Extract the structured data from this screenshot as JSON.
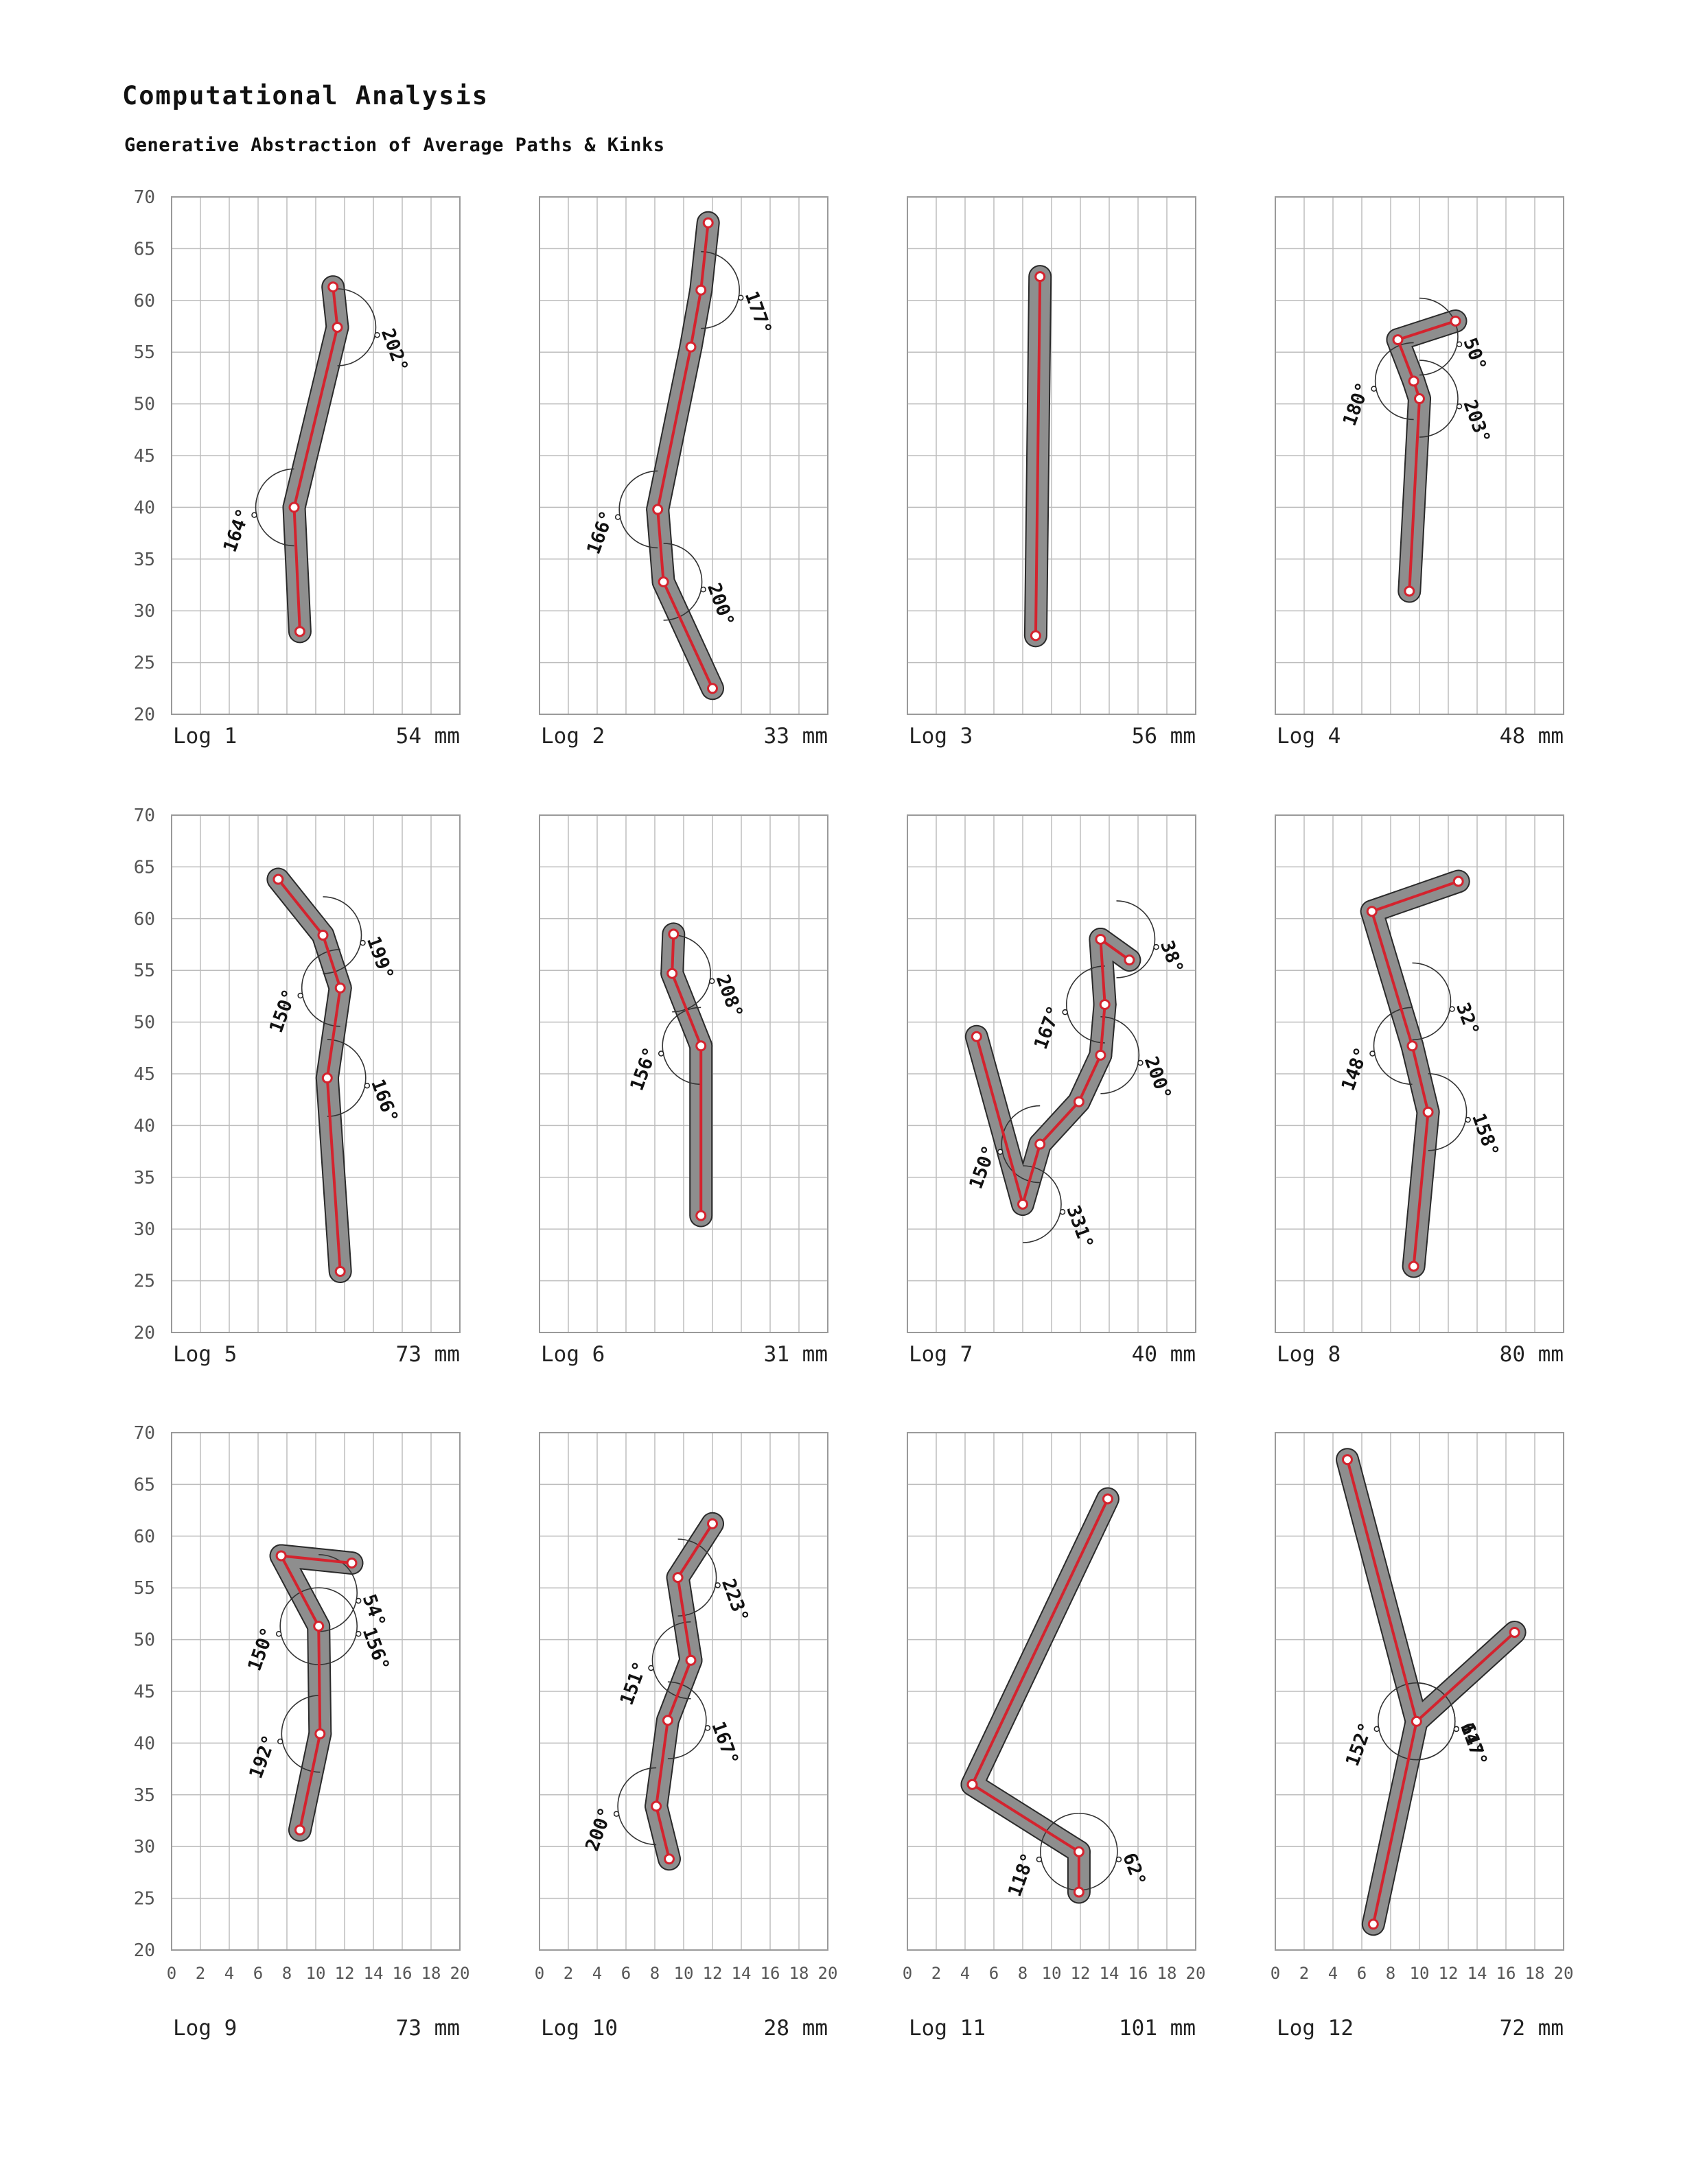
{
  "header": {
    "title": "Computational Analysis",
    "subtitle": "Generative Abstraction of Average Paths & Kinks"
  },
  "colors": {
    "path": "#d4232e",
    "log_fill": "#8e8e8e",
    "log_stroke": "#2a2a2a",
    "grid": "#bdbdbd",
    "text": "#111111"
  },
  "axes": {
    "y_ticks": [
      20,
      25,
      30,
      35,
      40,
      45,
      50,
      55,
      60,
      65,
      70
    ],
    "x_ticks": [
      0,
      2,
      4,
      6,
      8,
      10,
      12,
      14,
      16,
      18,
      20
    ],
    "xlim": [
      0,
      20
    ],
    "ylim": [
      20,
      70
    ]
  },
  "chart_data": [
    {
      "type": "scatter",
      "label": "Log 1",
      "length": "54 mm",
      "points": [
        [
          11.2,
          61.3
        ],
        [
          11.5,
          57.4
        ],
        [
          8.5,
          40.0
        ],
        [
          8.9,
          28.0
        ]
      ],
      "angles": [
        {
          "value": "202°",
          "at": [
            11.5,
            57.4
          ]
        },
        {
          "value": "164°",
          "at": [
            8.5,
            40.0
          ]
        }
      ]
    },
    {
      "type": "scatter",
      "label": "Log 2",
      "length": "33 mm",
      "points": [
        [
          11.7,
          67.5
        ],
        [
          11.2,
          61.0
        ],
        [
          10.5,
          55.5
        ],
        [
          8.2,
          39.8
        ],
        [
          8.6,
          32.8
        ],
        [
          12.0,
          22.5
        ]
      ],
      "angles": [
        {
          "value": "177°",
          "at": [
            11.2,
            61.0
          ]
        },
        {
          "value": "166°",
          "at": [
            8.2,
            39.8
          ]
        },
        {
          "value": "200°",
          "at": [
            8.6,
            32.8
          ]
        }
      ]
    },
    {
      "type": "scatter",
      "label": "Log 3",
      "length": "56 mm",
      "points": [
        [
          9.2,
          62.3
        ],
        [
          8.9,
          27.6
        ]
      ],
      "angles": []
    },
    {
      "type": "scatter",
      "label": "Log 4",
      "length": "48 mm",
      "points": [
        [
          8.5,
          56.2
        ],
        [
          9.6,
          52.2
        ],
        [
          10.0,
          50.5
        ],
        [
          12.5,
          58.0
        ],
        [
          9.3,
          31.9
        ]
      ],
      "angles": [
        {
          "value": "50°",
          "at": [
            10.0,
            56.5
          ]
        },
        {
          "value": "180°",
          "at": [
            9.6,
            52.2
          ]
        },
        {
          "value": "203°",
          "at": [
            10.0,
            50.5
          ]
        }
      ]
    },
    {
      "type": "scatter",
      "label": "Log 5",
      "length": "73 mm",
      "points": [
        [
          7.4,
          63.8
        ],
        [
          10.5,
          58.4
        ],
        [
          11.7,
          53.3
        ],
        [
          10.8,
          44.6
        ],
        [
          11.7,
          25.9
        ]
      ],
      "angles": [
        {
          "value": "199°",
          "at": [
            10.5,
            58.4
          ]
        },
        {
          "value": "150°",
          "at": [
            11.7,
            53.3
          ]
        },
        {
          "value": "166°",
          "at": [
            10.8,
            44.6
          ]
        }
      ]
    },
    {
      "type": "scatter",
      "label": "Log 6",
      "length": "31 mm",
      "points": [
        [
          9.3,
          58.5
        ],
        [
          9.2,
          54.7
        ],
        [
          11.2,
          47.7
        ],
        [
          11.2,
          31.3
        ]
      ],
      "angles": [
        {
          "value": "208°",
          "at": [
            9.2,
            54.7
          ]
        },
        {
          "value": "156°",
          "at": [
            11.2,
            47.7
          ]
        }
      ]
    },
    {
      "type": "scatter",
      "label": "Log 7",
      "length": "40 mm",
      "points": [
        [
          4.8,
          48.6
        ],
        [
          8.0,
          32.4
        ],
        [
          9.2,
          38.2
        ],
        [
          11.9,
          42.3
        ],
        [
          13.4,
          46.8
        ],
        [
          13.7,
          51.7
        ],
        [
          13.4,
          58.0
        ],
        [
          15.4,
          56.0
        ]
      ],
      "angles": [
        {
          "value": "38°",
          "at": [
            14.5,
            58.0
          ]
        },
        {
          "value": "167°",
          "at": [
            13.7,
            51.7
          ]
        },
        {
          "value": "200°",
          "at": [
            13.4,
            46.8
          ]
        },
        {
          "value": "150°",
          "at": [
            9.2,
            38.2
          ]
        },
        {
          "value": "331°",
          "at": [
            8.0,
            32.4
          ]
        }
      ]
    },
    {
      "type": "scatter",
      "label": "Log 8",
      "length": "80 mm",
      "points": [
        [
          6.7,
          60.7
        ],
        [
          9.5,
          47.7
        ],
        [
          12.7,
          63.6
        ],
        [
          10.6,
          41.3
        ],
        [
          9.6,
          26.4
        ]
      ],
      "angles": [
        {
          "value": "32°",
          "at": [
            9.5,
            52.0
          ]
        },
        {
          "value": "148°",
          "at": [
            9.5,
            47.7
          ]
        },
        {
          "value": "158°",
          "at": [
            10.6,
            41.3
          ]
        }
      ]
    },
    {
      "type": "scatter",
      "label": "Log 9",
      "length": "73 mm",
      "points": [
        [
          7.6,
          58.1
        ],
        [
          10.2,
          51.3
        ],
        [
          12.5,
          57.4
        ],
        [
          10.3,
          40.9
        ],
        [
          8.9,
          31.6
        ]
      ],
      "angles": [
        {
          "value": "54°",
          "at": [
            10.2,
            54.5
          ]
        },
        {
          "value": "150°",
          "at": [
            10.2,
            51.3
          ]
        },
        {
          "value": "156°",
          "at": [
            10.2,
            51.3
          ]
        },
        {
          "value": "192°",
          "at": [
            10.3,
            40.9
          ]
        }
      ]
    },
    {
      "type": "scatter",
      "label": "Log 10",
      "length": "28 mm",
      "points": [
        [
          12.0,
          61.2
        ],
        [
          9.6,
          56.0
        ],
        [
          10.5,
          48.0
        ],
        [
          8.9,
          42.2
        ],
        [
          8.1,
          33.9
        ],
        [
          9.0,
          28.8
        ]
      ],
      "angles": [
        {
          "value": "223°",
          "at": [
            9.6,
            56.0
          ]
        },
        {
          "value": "151°",
          "at": [
            10.5,
            48.0
          ]
        },
        {
          "value": "167°",
          "at": [
            8.9,
            42.2
          ]
        },
        {
          "value": "200°",
          "at": [
            8.1,
            33.9
          ]
        }
      ]
    },
    {
      "type": "scatter",
      "label": "Log 11",
      "length": "101 mm",
      "points": [
        [
          4.5,
          36.0
        ],
        [
          11.9,
          29.5
        ],
        [
          11.9,
          25.6
        ],
        [
          13.9,
          63.6
        ]
      ],
      "angles": [
        {
          "value": "62°",
          "at": [
            11.9,
            29.5
          ]
        },
        {
          "value": "118°",
          "at": [
            11.9,
            29.5
          ]
        }
      ]
    },
    {
      "type": "scatter",
      "label": "Log 12",
      "length": "72 mm",
      "points": [
        [
          5.0,
          67.4
        ],
        [
          9.8,
          42.1
        ],
        [
          16.6,
          50.7
        ],
        [
          6.8,
          22.5
        ]
      ],
      "angles": [
        {
          "value": "61°",
          "at": [
            9.8,
            42.1
          ]
        },
        {
          "value": "152°",
          "at": [
            9.8,
            42.1
          ]
        },
        {
          "value": "147°",
          "at": [
            9.8,
            42.1
          ]
        }
      ]
    }
  ]
}
